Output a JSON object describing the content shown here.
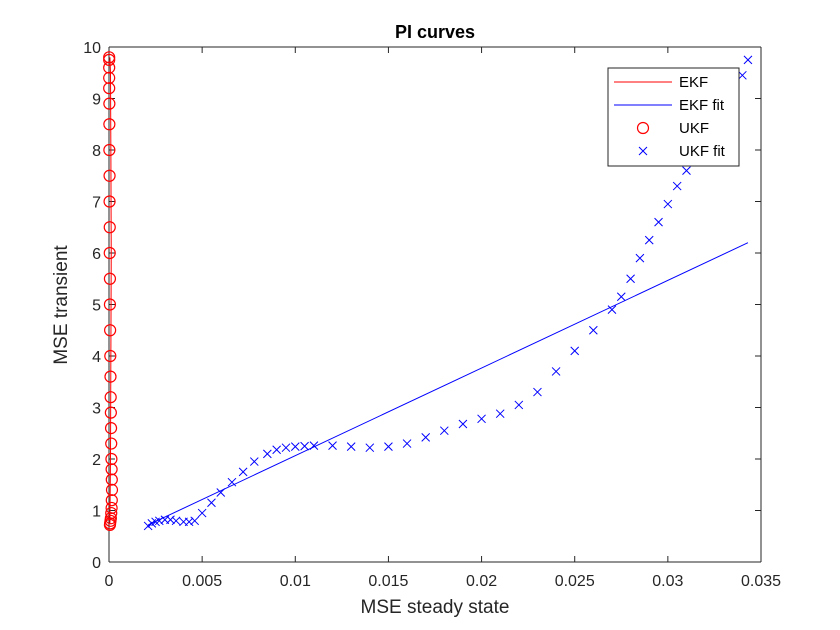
{
  "chart_data": {
    "type": "scatter",
    "title": "PI curves",
    "xlabel": "MSE steady state",
    "ylabel": "MSE transient",
    "xlim": [
      0,
      0.035
    ],
    "ylim": [
      0,
      10
    ],
    "xticks": [
      "0",
      "0.005",
      "0.01",
      "0.015",
      "0.02",
      "0.025",
      "0.03",
      "0.035"
    ],
    "yticks": [
      "0",
      "1",
      "2",
      "3",
      "4",
      "5",
      "6",
      "7",
      "8",
      "9",
      "10"
    ],
    "grid": false,
    "legend_position": "top-right",
    "colors": {
      "red": "#ff0000",
      "blue": "#0000ff",
      "axis": "#262626"
    },
    "series": [
      {
        "name": "EKF",
        "style": "line",
        "color": "#ff0000",
        "x": [
          5e-05,
          8e-05,
          0.0001,
          0.00012,
          0.0001,
          8e-05,
          5e-05
        ],
        "y": [
          0.75,
          2.0,
          4.0,
          6.0,
          8.0,
          9.5,
          9.8
        ]
      },
      {
        "name": "EKF fit",
        "style": "line",
        "color": "#0000ff",
        "x": [
          0.0021,
          0.0343
        ],
        "y": [
          0.72,
          6.2
        ]
      },
      {
        "name": "UKF",
        "style": "circle",
        "color": "#ff0000",
        "x": [
          5e-05,
          6e-05,
          8e-05,
          0.0001,
          0.00012,
          0.00014,
          0.00015,
          0.00016,
          0.00015,
          0.00014,
          0.00013,
          0.00012,
          0.00011,
          0.0001,
          9e-05,
          8e-05,
          7e-05,
          6e-05,
          5e-05,
          5e-05,
          4e-05,
          4e-05,
          3e-05,
          3e-05,
          2e-05,
          2e-05,
          2e-05,
          1e-05,
          1e-05,
          1e-05,
          1e-05,
          1e-05
        ],
        "y": [
          0.72,
          0.75,
          0.8,
          0.85,
          0.95,
          1.05,
          1.2,
          1.4,
          1.6,
          1.8,
          2.0,
          2.3,
          2.6,
          2.9,
          3.2,
          3.6,
          4.0,
          4.5,
          5.0,
          5.5,
          6.0,
          6.5,
          7.0,
          7.5,
          8.0,
          8.5,
          8.9,
          9.2,
          9.4,
          9.6,
          9.75,
          9.8
        ]
      },
      {
        "name": "UKF fit",
        "style": "x",
        "color": "#0000ff",
        "x": [
          0.0021,
          0.0023,
          0.0025,
          0.0027,
          0.003,
          0.0033,
          0.0036,
          0.004,
          0.0043,
          0.0046,
          0.005,
          0.0055,
          0.006,
          0.0066,
          0.0072,
          0.0078,
          0.0085,
          0.009,
          0.0095,
          0.01,
          0.0105,
          0.011,
          0.012,
          0.013,
          0.014,
          0.015,
          0.016,
          0.017,
          0.018,
          0.019,
          0.02,
          0.021,
          0.022,
          0.023,
          0.024,
          0.025,
          0.026,
          0.027,
          0.0275,
          0.028,
          0.0285,
          0.029,
          0.0295,
          0.03,
          0.0305,
          0.031,
          0.0315,
          0.032,
          0.0325,
          0.033,
          0.0335,
          0.034,
          0.0343
        ],
        "y": [
          0.7,
          0.75,
          0.78,
          0.8,
          0.82,
          0.82,
          0.8,
          0.78,
          0.78,
          0.8,
          0.95,
          1.15,
          1.35,
          1.55,
          1.75,
          1.95,
          2.1,
          2.18,
          2.22,
          2.24,
          2.25,
          2.26,
          2.26,
          2.24,
          2.22,
          2.24,
          2.3,
          2.42,
          2.55,
          2.68,
          2.78,
          2.88,
          3.05,
          3.3,
          3.7,
          4.1,
          4.5,
          4.9,
          5.15,
          5.5,
          5.9,
          6.25,
          6.6,
          6.95,
          7.3,
          7.6,
          7.9,
          8.2,
          8.5,
          8.8,
          9.1,
          9.45,
          9.75
        ]
      }
    ]
  }
}
